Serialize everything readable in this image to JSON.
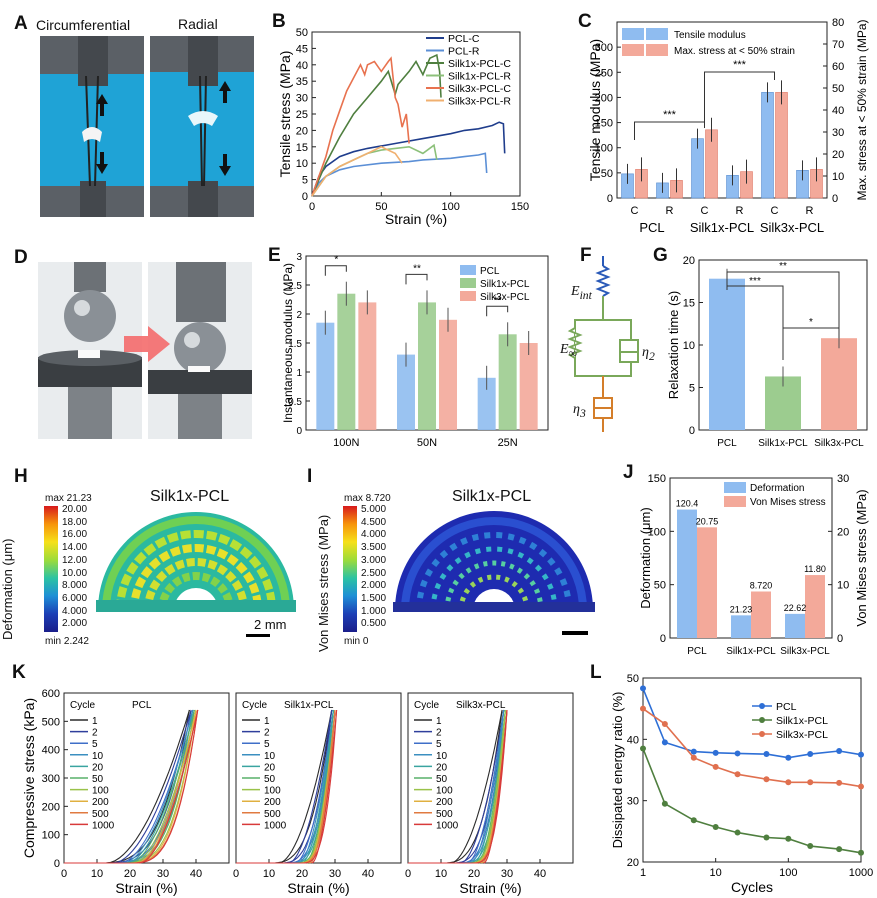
{
  "labels": {
    "a": "A",
    "b": "B",
    "c": "C",
    "d": "D",
    "e": "E",
    "f": "F",
    "g": "G",
    "h": "H",
    "i": "I",
    "j": "J",
    "k": "K",
    "l": "L"
  },
  "panel_a": {
    "left": "Circumferential",
    "right": "Radial"
  },
  "panel_f": {
    "eint": "E",
    "eint_sub": "int",
    "einf": "E",
    "einf_sub": "∞",
    "eta2": "η",
    "eta2_sub": "2",
    "eta3": "η",
    "eta3_sub": "3"
  },
  "panel_h": {
    "title": "Silk1x-PCL",
    "cb_label": "Deformation (μm)",
    "cb_max": "max 21.23",
    "cb_min": "min 2.242",
    "cb_ticks": [
      "20.00",
      "18.00",
      "16.00",
      "14.00",
      "12.00",
      "10.00",
      "8.000",
      "6.000",
      "4.000",
      "2.000"
    ],
    "scale": "2 mm"
  },
  "panel_i": {
    "title": "Silk1x-PCL",
    "cb_label": "Von Mises stress (MPa)",
    "cb_max": "max 8.720",
    "cb_min": "min 0",
    "cb_ticks": [
      "5.000",
      "4.500",
      "4.000",
      "3.500",
      "3.000",
      "2.500",
      "2.000",
      "1.500",
      "1.000",
      "0.500"
    ]
  },
  "colors": {
    "blue": "#8fbcf0",
    "green": "#9ccc8f",
    "red": "#f3a99a",
    "bar_stroke": "#5b8fd0"
  },
  "chart_data": [
    {
      "id": "B",
      "type": "line",
      "xlabel": "Strain (%)",
      "ylabel": "Tensile stress (MPa)",
      "xlim": [
        0,
        150
      ],
      "ylim": [
        0,
        50
      ],
      "xticks": [
        0,
        50,
        100,
        150
      ],
      "yticks": [
        0,
        5,
        10,
        15,
        20,
        25,
        30,
        35,
        40,
        45,
        50
      ],
      "series": [
        {
          "name": "PCL-C",
          "color": "#1f3d8c",
          "x": [
            0,
            5,
            10,
            20,
            30,
            40,
            60,
            80,
            100,
            110,
            120,
            130,
            135,
            138,
            139
          ],
          "y": [
            0,
            6,
            9,
            12,
            13.5,
            14.5,
            16,
            17.5,
            19,
            20,
            20.5,
            21.5,
            22.5,
            22,
            13
          ]
        },
        {
          "name": "PCL-R",
          "color": "#5b8fd6",
          "x": [
            0,
            5,
            10,
            20,
            30,
            50,
            70,
            80,
            100,
            110,
            120,
            125,
            126
          ],
          "y": [
            0,
            4,
            6,
            8,
            9,
            10,
            10.5,
            11,
            11.5,
            12,
            12.5,
            13,
            7
          ]
        },
        {
          "name": "Silk1x-PCL-C",
          "color": "#4f7f3f",
          "x": [
            0,
            5,
            10,
            20,
            30,
            40,
            50,
            55,
            60,
            62,
            70,
            75,
            80,
            85,
            90,
            92,
            93
          ],
          "y": [
            0,
            5,
            10,
            18,
            25,
            30,
            35,
            38,
            31,
            34,
            38,
            41,
            37,
            42,
            43,
            38,
            30
          ]
        },
        {
          "name": "Silk1x-PCL-R",
          "color": "#8cc07a",
          "x": [
            0,
            5,
            10,
            20,
            30,
            40,
            50,
            60,
            70,
            80,
            88,
            90
          ],
          "y": [
            0,
            3,
            6,
            9,
            11,
            13,
            14,
            14.5,
            15,
            13,
            15.5,
            11
          ]
        },
        {
          "name": "Silk3x-PCL-C",
          "color": "#e8724f",
          "x": [
            0,
            5,
            10,
            15,
            20,
            25,
            30,
            35,
            38,
            40,
            45,
            50,
            55,
            57,
            60,
            62,
            65,
            68,
            70
          ],
          "y": [
            0,
            6,
            12,
            20,
            26,
            32,
            36,
            40,
            37,
            40,
            41,
            38,
            41,
            42,
            30,
            28,
            21,
            25,
            16
          ]
        },
        {
          "name": "Silk3x-PCL-R",
          "color": "#f0b070",
          "x": [
            0,
            5,
            10,
            20,
            30,
            40,
            50,
            55,
            60,
            65
          ],
          "y": [
            0,
            3,
            6,
            9,
            11,
            13,
            15,
            14,
            13,
            10
          ]
        }
      ]
    },
    {
      "id": "C",
      "type": "bar",
      "categories": [
        "C",
        "R",
        "C",
        "R",
        "C",
        "R"
      ],
      "groups": [
        "PCL",
        "Silk1x-PCL",
        "Silk3x-PCL"
      ],
      "ylabel": "Tensile modulus (MPa)",
      "y2label": "Max. stress at < 50% strain (MPa)",
      "ylim": [
        0,
        350
      ],
      "y2lim": [
        0,
        80
      ],
      "yticks": [
        0,
        50,
        100,
        150,
        200,
        250,
        300
      ],
      "y2ticks": [
        0,
        10,
        20,
        30,
        40,
        50,
        60,
        70,
        80
      ],
      "series": [
        {
          "name": "Tensile modulus",
          "values": [
            48,
            30,
            118,
            45,
            210,
            55
          ]
        },
        {
          "name": "Max. stress at < 50% strain",
          "values": [
            13,
            8,
            31,
            12,
            48,
            13
          ]
        }
      ],
      "sig": [
        "***",
        "***"
      ]
    },
    {
      "id": "E",
      "type": "bar",
      "categories": [
        "100N",
        "50N",
        "25N"
      ],
      "ylabel": "Instantaneous modulus (MPa)",
      "ylim": [
        0,
        3
      ],
      "yticks": [
        0,
        0.5,
        1.0,
        1.5,
        2.0,
        2.5,
        3.0
      ],
      "series": [
        {
          "name": "PCL",
          "values": [
            1.85,
            1.3,
            0.9
          ]
        },
        {
          "name": "Silk1x-PCL",
          "values": [
            2.35,
            2.2,
            1.65
          ]
        },
        {
          "name": "Silk3x-PCL",
          "values": [
            2.2,
            1.9,
            1.5
          ]
        }
      ],
      "sig": [
        "*",
        "**",
        "**"
      ]
    },
    {
      "id": "G",
      "type": "bar",
      "categories": [
        "PCL",
        "Silk1x-PCL",
        "Silk3x-PCL"
      ],
      "ylabel": "Relaxation time (s)",
      "ylim": [
        0,
        20
      ],
      "yticks": [
        0,
        5,
        10,
        15,
        20
      ],
      "values": [
        17.8,
        6.3,
        10.8
      ],
      "sig": [
        "**",
        "***",
        "*"
      ]
    },
    {
      "id": "J",
      "type": "bar",
      "categories": [
        "PCL",
        "Silk1x-PCL",
        "Silk3x-PCL"
      ],
      "ylabel": "Deformation (μm)",
      "y2label": "Von Mises stress (MPa)",
      "ylim": [
        0,
        150
      ],
      "y2lim": [
        0,
        30
      ],
      "yticks": [
        0,
        50,
        100,
        150
      ],
      "y2ticks": [
        0,
        10,
        20,
        30
      ],
      "series": [
        {
          "name": "Deformation",
          "values": [
            120.4,
            21.23,
            22.62
          ],
          "labels": [
            "120.4",
            "21.23",
            "22.62"
          ]
        },
        {
          "name": "Von Mises stress",
          "values": [
            20.75,
            8.72,
            11.8
          ],
          "labels": [
            "20.75",
            "8.720",
            "11.80"
          ]
        }
      ]
    },
    {
      "id": "K",
      "type": "line",
      "xlabel": "Strain (%)",
      "ylabel": "Compressive stress (kPa)",
      "xlim": [
        0,
        50
      ],
      "ylim": [
        0,
        600
      ],
      "xticks": [
        0,
        10,
        20,
        30,
        40
      ],
      "yticks": [
        0,
        100,
        200,
        300,
        400,
        500,
        600
      ],
      "legend_title": "Cycle",
      "cycles": [
        "1",
        "2",
        "5",
        "10",
        "20",
        "50",
        "100",
        "200",
        "500",
        "1000"
      ],
      "cycle_colors": [
        "#2b2b2b",
        "#2f3f9c",
        "#3f6fc8",
        "#3b8fc0",
        "#3aa4a0",
        "#59b06a",
        "#9ac24a",
        "#e0b040",
        "#e07a40",
        "#d83a3a"
      ],
      "panels": [
        {
          "title": "PCL",
          "end_strain": [
            38,
            38.5,
            39,
            39,
            39.5,
            39.5,
            40,
            40,
            40.5,
            40.5
          ],
          "start": [
            10,
            12,
            14,
            15,
            16,
            17,
            18,
            19,
            19.5,
            20
          ]
        },
        {
          "title": "Silk1x-PCL",
          "end_strain": [
            29,
            29,
            29.5,
            29.5,
            29.5,
            30,
            30,
            30,
            30,
            30.5
          ],
          "start": [
            10,
            13,
            15,
            16,
            17,
            18,
            18.5,
            19,
            19.5,
            20
          ]
        },
        {
          "title": "Silk3x-PCL",
          "end_strain": [
            28.5,
            29,
            29,
            29,
            29.5,
            29.5,
            29.5,
            30,
            30,
            30
          ],
          "start": [
            10,
            13,
            15,
            16,
            17,
            18,
            18.5,
            19,
            19.5,
            20
          ]
        }
      ]
    },
    {
      "id": "L",
      "type": "line",
      "xlabel": "Cycles",
      "ylabel": "Dissipated energy ratio (%)",
      "xscale": "log",
      "xlim": [
        1,
        1000
      ],
      "ylim": [
        20,
        50
      ],
      "xticks": [
        1,
        10,
        100,
        1000
      ],
      "yticks": [
        20,
        30,
        40,
        50
      ],
      "x": [
        1,
        2,
        5,
        10,
        20,
        50,
        100,
        200,
        500,
        1000
      ],
      "series": [
        {
          "name": "PCL",
          "color": "#2e6fd6",
          "values": [
            48.3,
            39.5,
            38,
            37.8,
            37.7,
            37.6,
            37,
            37.6,
            38.1,
            37.5
          ]
        },
        {
          "name": "Silk1x-PCL",
          "color": "#4f7f3f",
          "values": [
            38.5,
            29.5,
            26.8,
            25.7,
            24.8,
            24,
            23.8,
            22.6,
            22.1,
            21.5
          ]
        },
        {
          "name": "Silk3x-PCL",
          "color": "#e0704f",
          "values": [
            45,
            42.5,
            37,
            35.5,
            34.3,
            33.5,
            33,
            33,
            32.9,
            32.3
          ]
        }
      ]
    }
  ]
}
